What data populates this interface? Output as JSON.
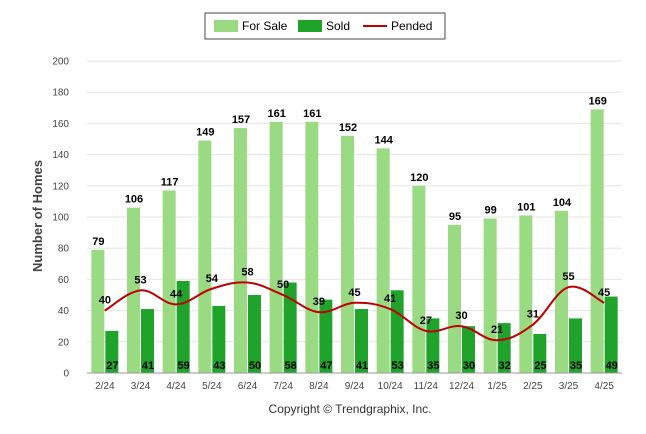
{
  "chart_data": {
    "type": "bar",
    "categories": [
      "2/24",
      "3/24",
      "4/24",
      "5/24",
      "6/24",
      "7/24",
      "8/24",
      "9/24",
      "10/24",
      "11/24",
      "12/24",
      "1/25",
      "2/25",
      "3/25",
      "4/25"
    ],
    "series": [
      {
        "name": "For Sale",
        "kind": "bar",
        "color": "#9ada82",
        "values": [
          79,
          106,
          117,
          149,
          157,
          161,
          161,
          152,
          144,
          120,
          95,
          99,
          101,
          104,
          169
        ]
      },
      {
        "name": "Sold",
        "kind": "bar",
        "color": "#1fa32b",
        "values": [
          27,
          41,
          59,
          43,
          50,
          58,
          47,
          41,
          53,
          35,
          30,
          32,
          25,
          35,
          49
        ]
      },
      {
        "name": "Pended",
        "kind": "line",
        "color": "#c00000",
        "values": [
          40,
          53,
          44,
          54,
          58,
          50,
          39,
          45,
          41,
          27,
          30,
          21,
          31,
          55,
          45
        ]
      }
    ],
    "ylabel": "Number of Homes",
    "ylim": [
      0,
      200
    ],
    "yticks": [
      0,
      20,
      40,
      60,
      80,
      100,
      120,
      140,
      160,
      180,
      200
    ],
    "grid": true,
    "legend_position": "top-center"
  },
  "footer": "Copyright © Trendgraphix, Inc."
}
